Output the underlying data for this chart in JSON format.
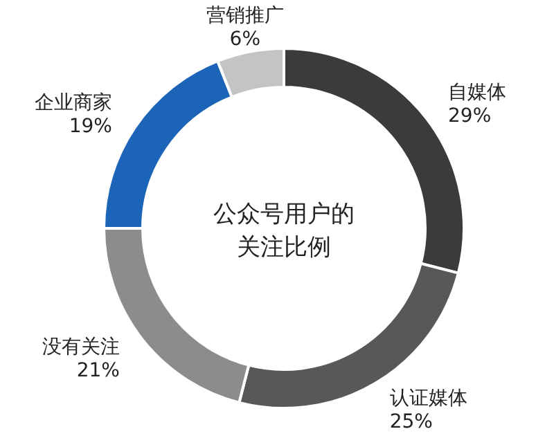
{
  "chart_data": {
    "type": "donut",
    "title": "公众号用户的关注比例",
    "categories": [
      "自媒体",
      "认证媒体",
      "没有关注",
      "企业商家",
      "营销推广"
    ],
    "values": [
      29,
      25,
      21,
      19,
      6
    ],
    "value_labels": [
      "29%",
      "25%",
      "21%",
      "19%",
      "6%"
    ],
    "colors": [
      "#3b3b3d",
      "#58585a",
      "#8c8c8e",
      "#1c64b8",
      "#c4c4c6"
    ],
    "legend": false
  }
}
